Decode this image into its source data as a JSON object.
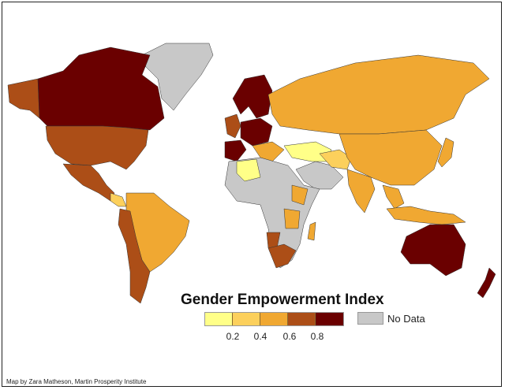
{
  "legend": {
    "title": "Gender Empowerment Index",
    "colors": [
      "#ffff88",
      "#fcd05c",
      "#f0a832",
      "#ac4e17",
      "#6a0000"
    ],
    "ticks": [
      "0.2",
      "0.4",
      "0.6",
      "0.8"
    ],
    "no_data_label": "No Data",
    "no_data_color": "#c8c8c8"
  },
  "credit": "Map by Zara Matheson, Martin Prosperity Institute"
}
